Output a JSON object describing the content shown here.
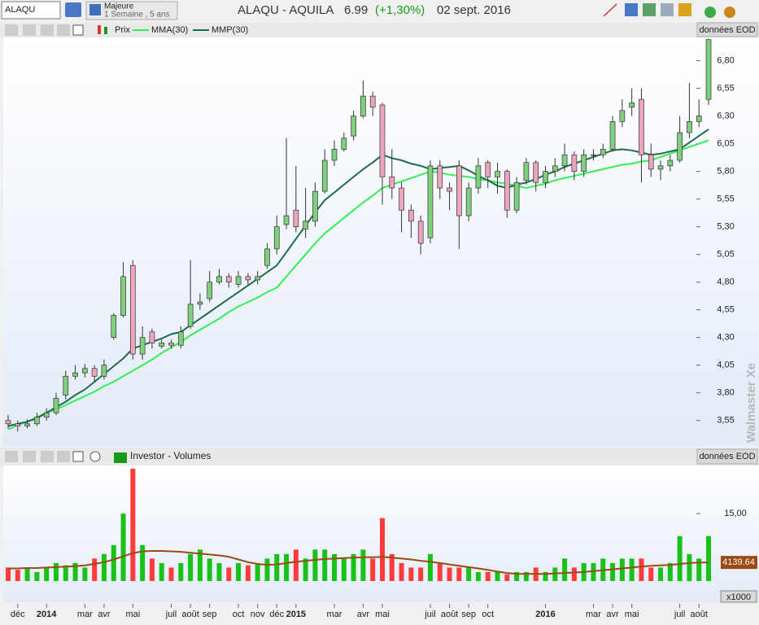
{
  "toolbar": {
    "symbol": "ALAQU",
    "period_title": "Majeure",
    "period": "1 Semaine , 5 ans",
    "name": "ALAQU - AQUILA",
    "last": "6.99",
    "change": "(+1,30%)",
    "date": "02 sept. 2016"
  },
  "watermark": "Walmaster Xe",
  "chart_data": [
    {
      "type": "candlestick",
      "name": "Prix",
      "source": "données EOD",
      "categories": [
        null,
        "déc",
        null,
        null,
        "2014",
        null,
        null,
        null,
        "mar",
        null,
        "avr",
        null,
        null,
        "mai",
        null,
        null,
        null,
        "juil",
        null,
        "août",
        null,
        "sep",
        null,
        null,
        "oct",
        null,
        "nov",
        null,
        "déc",
        null,
        "2015",
        null,
        null,
        null,
        "mar",
        null,
        null,
        "avr",
        null,
        "mai",
        null,
        null,
        null,
        null,
        "juil",
        null,
        "août",
        null,
        "sep",
        null,
        "oct",
        null,
        null,
        null,
        null,
        null,
        "2016",
        null,
        null,
        null,
        null,
        "mar",
        null,
        "avr",
        null,
        "mai",
        null,
        null,
        null,
        null,
        "juil",
        null,
        "août",
        null
      ],
      "open": [
        3.55,
        3.52,
        3.5,
        3.52,
        3.58,
        3.62,
        3.78,
        3.95,
        3.98,
        4.02,
        3.95,
        4.3,
        4.5,
        4.95,
        4.15,
        4.35,
        4.22,
        4.25,
        4.23,
        4.4,
        4.6,
        4.65,
        4.8,
        4.85,
        4.78,
        4.85,
        4.82,
        4.95,
        5.1,
        5.32,
        5.45,
        5.28,
        5.35,
        5.62,
        5.9,
        6.0,
        6.12,
        6.3,
        6.48,
        6.4,
        5.75,
        5.65,
        5.45,
        5.35,
        5.2,
        5.85,
        5.65,
        5.85,
        5.4,
        5.65,
        5.88,
        5.75,
        5.8,
        5.45,
        5.72,
        5.88,
        5.7,
        5.8,
        5.85,
        5.95,
        5.8,
        5.95,
        5.95,
        6.0,
        6.25,
        6.38,
        6.45,
        5.95,
        5.82,
        5.85,
        5.9,
        6.15,
        6.25,
        6.45
      ],
      "high": [
        3.6,
        3.55,
        3.56,
        3.62,
        3.66,
        3.8,
        4.0,
        4.05,
        4.06,
        4.05,
        4.1,
        4.52,
        4.98,
        5.0,
        4.4,
        4.38,
        4.28,
        4.28,
        4.4,
        5.0,
        4.7,
        4.9,
        4.92,
        4.88,
        4.9,
        4.88,
        4.9,
        5.15,
        5.4,
        6.1,
        5.85,
        5.65,
        5.7,
        6.0,
        6.08,
        6.15,
        6.35,
        6.62,
        6.52,
        6.42,
        6.0,
        5.7,
        5.5,
        5.4,
        5.9,
        5.9,
        5.7,
        5.9,
        5.7,
        5.92,
        5.9,
        5.88,
        5.82,
        5.75,
        5.92,
        5.9,
        5.85,
        5.92,
        6.05,
        5.98,
        6.0,
        6.0,
        6.05,
        6.3,
        6.45,
        6.55,
        6.55,
        6.05,
        5.9,
        5.95,
        6.3,
        6.6,
        6.45,
        7.0
      ],
      "low": [
        3.48,
        3.45,
        3.48,
        3.5,
        3.55,
        3.6,
        3.74,
        3.92,
        3.94,
        3.9,
        3.92,
        4.28,
        4.48,
        4.1,
        4.1,
        4.2,
        4.2,
        4.2,
        4.2,
        4.38,
        4.55,
        4.62,
        4.78,
        4.75,
        4.75,
        4.78,
        4.78,
        4.92,
        5.05,
        5.28,
        5.25,
        5.2,
        5.3,
        5.6,
        5.85,
        5.98,
        6.08,
        6.28,
        6.3,
        5.5,
        5.55,
        5.25,
        5.2,
        5.05,
        5.15,
        5.55,
        5.45,
        5.1,
        5.35,
        5.6,
        5.65,
        5.6,
        5.38,
        5.42,
        5.68,
        5.62,
        5.65,
        5.75,
        5.8,
        5.72,
        5.75,
        5.9,
        5.92,
        5.98,
        6.2,
        6.3,
        5.7,
        5.75,
        5.72,
        5.8,
        5.88,
        6.1,
        6.2,
        6.4
      ],
      "close": [
        3.52,
        3.5,
        3.52,
        3.58,
        3.62,
        3.75,
        3.95,
        3.98,
        4.02,
        3.95,
        4.05,
        4.5,
        4.85,
        4.15,
        4.3,
        4.25,
        4.25,
        4.23,
        4.35,
        4.6,
        4.62,
        4.8,
        4.85,
        4.8,
        4.85,
        4.82,
        4.85,
        5.1,
        5.3,
        5.4,
        5.3,
        5.35,
        5.62,
        5.9,
        6.0,
        6.1,
        6.3,
        6.48,
        6.38,
        5.75,
        5.65,
        5.45,
        5.35,
        5.15,
        5.85,
        5.65,
        5.62,
        5.4,
        5.65,
        5.85,
        5.75,
        5.8,
        5.45,
        5.7,
        5.88,
        5.7,
        5.8,
        5.85,
        5.95,
        5.8,
        5.95,
        5.95,
        6.0,
        6.25,
        6.35,
        6.42,
        5.95,
        5.82,
        5.85,
        5.9,
        6.15,
        6.25,
        6.3,
        6.99
      ],
      "up_color": "#7fcf7f",
      "down_color": "#eba6bd",
      "lines": [
        {
          "name": "MMA(30)",
          "color": "#33ee55",
          "values": [
            3.47,
            3.51,
            3.54,
            3.58,
            3.62,
            3.65,
            3.69,
            3.73,
            3.77,
            3.81,
            3.86,
            3.9,
            3.95,
            4.0,
            4.05,
            4.1,
            4.16,
            4.21,
            4.26,
            4.32,
            4.37,
            4.42,
            4.47,
            4.53,
            4.58,
            4.62,
            4.66,
            4.71,
            4.75,
            4.85,
            4.95,
            5.05,
            5.15,
            5.24,
            5.31,
            5.38,
            5.45,
            5.52,
            5.58,
            5.65,
            5.68,
            5.71,
            5.74,
            5.77,
            5.8,
            5.79,
            5.77,
            5.76,
            5.75,
            5.73,
            5.72,
            5.7,
            5.69,
            5.67,
            5.65,
            5.67,
            5.69,
            5.72,
            5.74,
            5.76,
            5.78,
            5.8,
            5.82,
            5.84,
            5.86,
            5.87,
            5.89,
            5.9,
            5.93,
            5.96,
            5.99,
            6.02,
            6.05,
            6.08
          ]
        },
        {
          "name": "MMP(30)",
          "color": "#1e6b4a",
          "values": [
            3.5,
            3.52,
            3.54,
            3.57,
            3.62,
            3.67,
            3.72,
            3.78,
            3.83,
            3.9,
            3.97,
            4.04,
            4.11,
            4.2,
            4.23,
            4.26,
            4.29,
            4.33,
            4.35,
            4.41,
            4.47,
            4.53,
            4.59,
            4.65,
            4.71,
            4.77,
            4.83,
            4.89,
            4.95,
            5.07,
            5.19,
            5.31,
            5.43,
            5.54,
            5.61,
            5.68,
            5.75,
            5.82,
            5.88,
            5.95,
            5.92,
            5.9,
            5.87,
            5.85,
            5.82,
            5.83,
            5.84,
            5.85,
            5.81,
            5.76,
            5.72,
            5.67,
            5.65,
            5.68,
            5.7,
            5.73,
            5.77,
            5.8,
            5.84,
            5.87,
            5.9,
            5.93,
            5.96,
            5.99,
            6.0,
            5.99,
            5.97,
            5.95,
            5.96,
            5.98,
            6.0,
            6.06,
            6.12,
            6.18
          ]
        }
      ],
      "ylim": [
        3.32,
        7.01
      ],
      "yticks": [
        {
          "value": 3.55,
          "label": "3,55"
        },
        {
          "value": 3.8,
          "label": "3,80"
        },
        {
          "value": 4.05,
          "label": "4,05"
        },
        {
          "value": 4.3,
          "label": "4,30"
        },
        {
          "value": 4.55,
          "label": "4,55"
        },
        {
          "value": 4.8,
          "label": "4,80"
        },
        {
          "value": 5.05,
          "label": "5,05"
        },
        {
          "value": 5.3,
          "label": "5,30"
        },
        {
          "value": 5.55,
          "label": "5,55"
        },
        {
          "value": 5.8,
          "label": "5,80"
        },
        {
          "value": 6.05,
          "label": "6,05"
        },
        {
          "value": 6.3,
          "label": "6,30"
        },
        {
          "value": 6.55,
          "label": "6,55"
        },
        {
          "value": 6.8,
          "label": "6,80"
        }
      ]
    },
    {
      "type": "bar",
      "title": "Investor - Volumes",
      "source": "données EOD",
      "unit": "x1000",
      "values": [
        3,
        2.5,
        3,
        2,
        3,
        4,
        3.5,
        4,
        3,
        5,
        6,
        8,
        15,
        25,
        8,
        5,
        4,
        3,
        4,
        6,
        7,
        5,
        4,
        3,
        4,
        3.5,
        4,
        5,
        6,
        6,
        7,
        5,
        7,
        7,
        6,
        5,
        6,
        7,
        5,
        14,
        6,
        4,
        3,
        3,
        6,
        4,
        3,
        3,
        3,
        2,
        2,
        2,
        1.5,
        2,
        2,
        3,
        2,
        3,
        5,
        3,
        4,
        4,
        5,
        4,
        5,
        5,
        5,
        3,
        3,
        4,
        10,
        6,
        5,
        10
      ],
      "up_color": "#19c219",
      "down_color": "#ff3b3b",
      "ma": {
        "color": "#9a4a12",
        "values": [
          2.8,
          2.8,
          2.9,
          2.9,
          3.0,
          3.1,
          3.2,
          3.3,
          3.5,
          3.8,
          4.2,
          4.8,
          5.5,
          6.2,
          6.6,
          6.7,
          6.7,
          6.6,
          6.5,
          6.3,
          6.1,
          5.9,
          5.7,
          5.4,
          4.8,
          4.2,
          3.8,
          3.6,
          3.7,
          4.0,
          4.3,
          4.5,
          4.7,
          4.9,
          5.0,
          5.1,
          5.2,
          5.3,
          5.3,
          5.4,
          5.2,
          5.0,
          4.8,
          4.5,
          4.3,
          4.0,
          3.7,
          3.4,
          3.1,
          2.8,
          2.5,
          2.1,
          1.8,
          1.6,
          1.6,
          1.6,
          1.6,
          1.7,
          1.8,
          1.9,
          2.0,
          2.2,
          2.4,
          2.6,
          2.8,
          3.0,
          3.2,
          3.4,
          3.5,
          3.6,
          3.8,
          4.0,
          4.1,
          4.14
        ],
        "last_label": {
          "value": 4.13964,
          "label": "4139.64"
        }
      },
      "ylim": [
        0,
        25.7
      ],
      "yticks": [
        {
          "value": 15,
          "label": "15,00"
        }
      ]
    }
  ]
}
